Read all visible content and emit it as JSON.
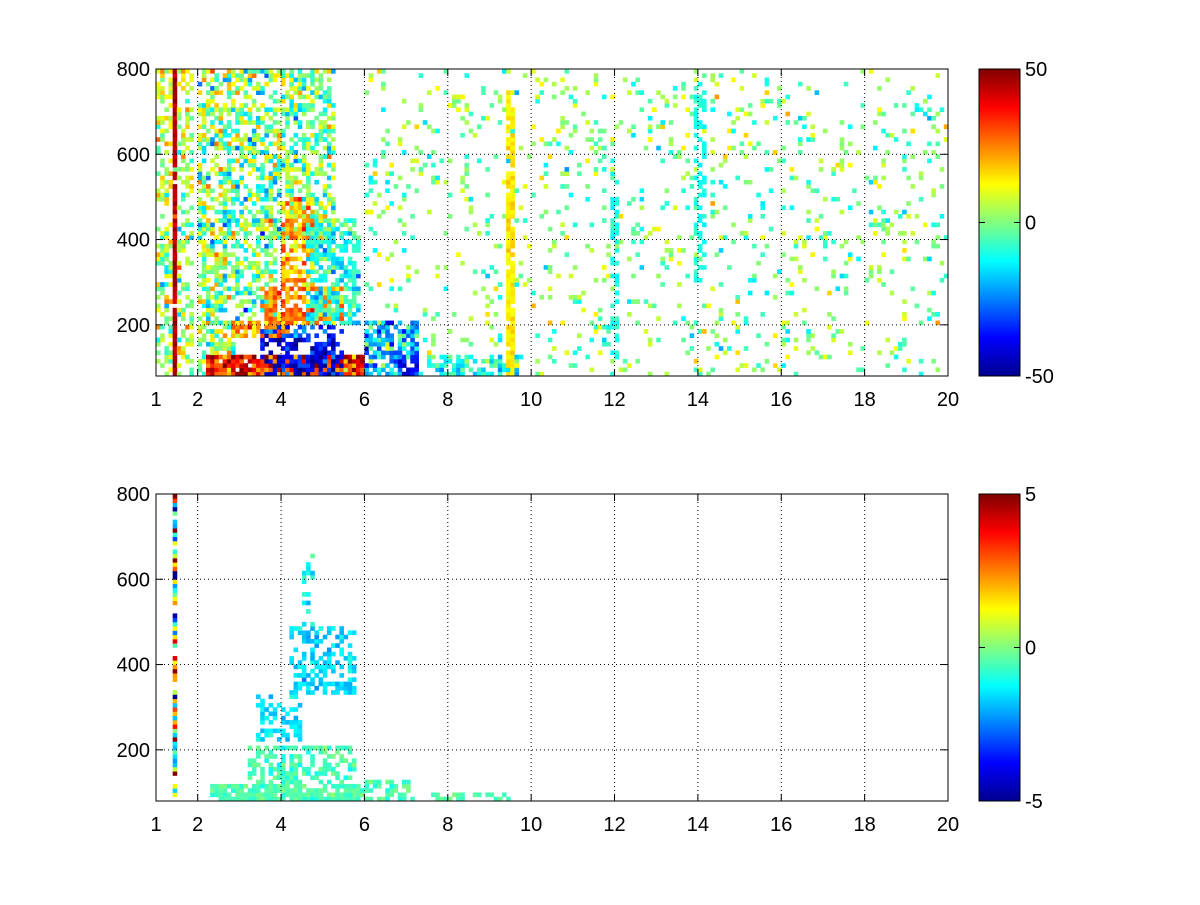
{
  "chart_data": [
    {
      "type": "heatmap",
      "title": "",
      "xlabel": "",
      "ylabel": "",
      "xlim": [
        1,
        20
      ],
      "ylim": [
        80,
        800
      ],
      "grid": true,
      "colormap": "jet",
      "x_tick_values": [
        1,
        2,
        4,
        6,
        8,
        10,
        12,
        14,
        16,
        18,
        20
      ],
      "x_tick_labels": [
        "1",
        "2",
        "4",
        "6",
        "8",
        "10",
        "12",
        "14",
        "16",
        "18",
        "20"
      ],
      "y_tick_values": [
        200,
        400,
        600,
        800
      ],
      "y_tick_labels": [
        "200",
        "400",
        "600",
        "800"
      ],
      "colorbar": {
        "min": -50,
        "max": 50,
        "tick_values": [
          50,
          0,
          -50
        ],
        "tick_labels": [
          "50",
          "0",
          "-50"
        ]
      },
      "features": [
        {
          "x": [
            1,
            1.9
          ],
          "y": [
            80,
            800
          ],
          "value": 5,
          "spread": 15,
          "density": 0.45
        },
        {
          "x": [
            1.4,
            1.5
          ],
          "y": [
            80,
            800
          ],
          "value": 45,
          "spread": 4,
          "density": 0.9
        },
        {
          "x": [
            2,
            2.9
          ],
          "y": [
            80,
            800
          ],
          "value": 2,
          "spread": 18,
          "density": 0.55
        },
        {
          "x": [
            2.9,
            3.9
          ],
          "y": [
            200,
            800
          ],
          "value": -2,
          "spread": 18,
          "density": 0.55
        },
        {
          "x": [
            3.9,
            5.3
          ],
          "y": [
            400,
            800
          ],
          "value": 0,
          "spread": 15,
          "density": 0.5
        },
        {
          "x": [
            2.2,
            6
          ],
          "y": [
            80,
            125
          ],
          "value": 35,
          "spread": 15,
          "density": 0.95
        },
        {
          "x": [
            3.5,
            5.5
          ],
          "y": [
            80,
            170
          ],
          "value": -40,
          "spread": 10,
          "density": 0.6
        },
        {
          "x": [
            2.8,
            4.2
          ],
          "y": [
            170,
            210
          ],
          "value": 22,
          "spread": 10,
          "density": 0.85
        },
        {
          "x": [
            3.5,
            5.5
          ],
          "y": [
            170,
            200
          ],
          "value": -28,
          "spread": 12,
          "density": 0.6
        },
        {
          "x": [
            3.6,
            5.5
          ],
          "y": [
            200,
            290
          ],
          "value": 25,
          "spread": 10,
          "density": 0.75
        },
        {
          "x": [
            4.0,
            4.8
          ],
          "y": [
            290,
            500
          ],
          "value": 20,
          "spread": 10,
          "density": 0.65
        },
        {
          "x": [
            4.6,
            5.9
          ],
          "y": [
            200,
            450
          ],
          "value": -10,
          "spread": 10,
          "density": 0.65
        },
        {
          "x": [
            6,
            7.3
          ],
          "y": [
            80,
            210
          ],
          "value": -22,
          "spread": 12,
          "density": 0.7
        },
        {
          "x": [
            6.8,
            7.3
          ],
          "y": [
            80,
            130
          ],
          "value": -38,
          "spread": 6,
          "density": 0.6
        },
        {
          "x": [
            7.5,
            9.8
          ],
          "y": [
            80,
            130
          ],
          "value": -12,
          "spread": 8,
          "density": 0.55
        },
        {
          "x": [
            6,
            20
          ],
          "y": [
            80,
            800
          ],
          "value": 0,
          "spread": 12,
          "density": 0.1
        },
        {
          "x": [
            9.4,
            9.6
          ],
          "y": [
            80,
            750
          ],
          "value": 15,
          "spread": 3,
          "density": 0.8
        },
        {
          "x": [
            11.9,
            12.1
          ],
          "y": [
            80,
            600
          ],
          "value": -10,
          "spread": 3,
          "density": 0.4
        },
        {
          "x": [
            13.9,
            14.2
          ],
          "y": [
            300,
            780
          ],
          "value": -10,
          "spread": 3,
          "density": 0.4
        }
      ]
    },
    {
      "type": "heatmap",
      "title": "",
      "xlabel": "",
      "ylabel": "",
      "xlim": [
        1,
        20
      ],
      "ylim": [
        80,
        800
      ],
      "grid": true,
      "colormap": "jet",
      "x_tick_values": [
        1,
        2,
        4,
        6,
        8,
        10,
        12,
        14,
        16,
        18,
        20
      ],
      "x_tick_labels": [
        "1",
        "2",
        "4",
        "6",
        "8",
        "10",
        "12",
        "14",
        "16",
        "18",
        "20"
      ],
      "y_tick_values": [
        200,
        400,
        600,
        800
      ],
      "y_tick_labels": [
        "200",
        "400",
        "600",
        "800"
      ],
      "colorbar": {
        "min": -5,
        "max": 5,
        "tick_values": [
          5,
          0,
          -5
        ],
        "tick_labels": [
          "5",
          "0",
          "-5"
        ]
      },
      "features": [
        {
          "x": [
            1.4,
            1.46
          ],
          "y": [
            80,
            800
          ],
          "value": 0.5,
          "spread": 4,
          "density": 0.9
        },
        {
          "x": [
            2.3,
            6
          ],
          "y": [
            80,
            120
          ],
          "value": -0.5,
          "spread": 0.4,
          "density": 0.85
        },
        {
          "x": [
            3.2,
            5.8
          ],
          "y": [
            120,
            210
          ],
          "value": -0.6,
          "spread": 0.5,
          "density": 0.55
        },
        {
          "x": [
            6,
            7.2
          ],
          "y": [
            80,
            130
          ],
          "value": -0.5,
          "spread": 0.4,
          "density": 0.55
        },
        {
          "x": [
            7.5,
            9.5
          ],
          "y": [
            80,
            100
          ],
          "value": -0.5,
          "spread": 0.3,
          "density": 0.3
        },
        {
          "x": [
            3.4,
            4.5
          ],
          "y": [
            220,
            330
          ],
          "value": -1.6,
          "spread": 0.5,
          "density": 0.45
        },
        {
          "x": [
            4.2,
            5.8
          ],
          "y": [
            330,
            490
          ],
          "value": -1.6,
          "spread": 0.5,
          "density": 0.45
        },
        {
          "x": [
            4.5,
            4.8
          ],
          "y": [
            490,
            660
          ],
          "value": -1.2,
          "spread": 0.6,
          "density": 0.35
        }
      ]
    }
  ]
}
